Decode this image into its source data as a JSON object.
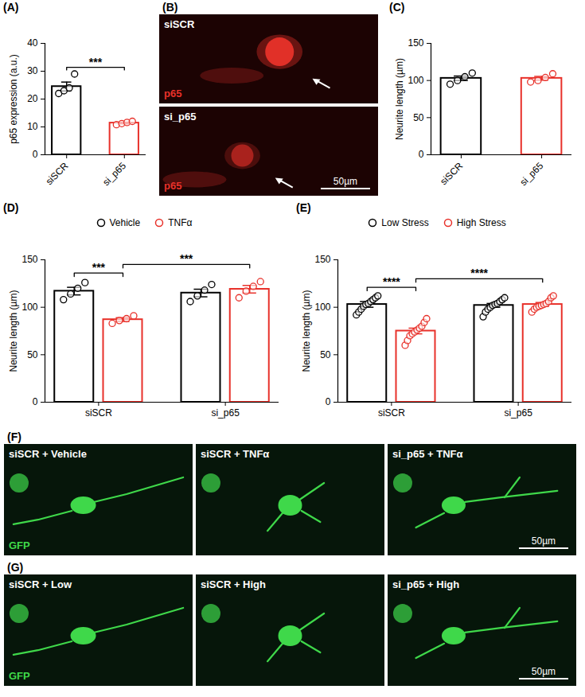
{
  "chart_data": [
    {
      "panel": "(A)",
      "type": "bar",
      "categories": [
        "siSCR",
        "si_p65"
      ],
      "values": [
        24.5,
        11.4
      ],
      "errors": [
        1.6,
        0.3
      ],
      "points": [
        [
          22,
          23,
          24,
          29
        ],
        [
          10.8,
          11.2,
          11.6,
          12
        ]
      ],
      "colors": [
        "#000000",
        "#e8312a"
      ],
      "y_label": "p65 expression (a.u.)",
      "ylim": [
        0,
        40
      ],
      "yticks": [
        0,
        10,
        20,
        30,
        40
      ],
      "significance": [
        {
          "from": {
            "category": 0
          },
          "to": {
            "category": 1
          },
          "label": "***"
        }
      ]
    },
    {
      "panel": "(C)",
      "type": "bar",
      "categories": [
        "siSCR",
        "si_p65"
      ],
      "values": [
        103,
        103
      ],
      "errors": [
        3,
        2.5
      ],
      "points": [
        [
          95,
          100,
          105,
          110
        ],
        [
          98,
          100,
          104,
          109
        ]
      ],
      "colors": [
        "#000000",
        "#e8312a"
      ],
      "y_label": "Neurite length (µm)",
      "ylim": [
        0,
        150
      ],
      "yticks": [
        0,
        50,
        100,
        150
      ]
    },
    {
      "panel": "(D)",
      "type": "bar",
      "categories": [
        "siSCR",
        "si_p65"
      ],
      "series": [
        {
          "name": "Vehicle",
          "color": "#000000",
          "values": [
            117,
            115
          ],
          "errors": [
            4,
            4
          ],
          "points": [
            [
              108,
              114,
              120,
              126
            ],
            [
              106,
              112,
              118,
              124
            ]
          ]
        },
        {
          "name": "TNFα",
          "color": "#e8312a",
          "values": [
            87,
            119
          ],
          "errors": [
            2,
            4
          ],
          "points": [
            [
              83,
              86,
              88,
              91
            ],
            [
              110,
              117,
              122,
              127
            ]
          ]
        }
      ],
      "legend": "top",
      "y_label": "Neurite length (µm)",
      "ylim": [
        0,
        150
      ],
      "yticks": [
        0,
        50,
        100,
        150
      ],
      "significance": [
        {
          "from": {
            "category": 0,
            "series": 0
          },
          "to": {
            "category": 0,
            "series": 1
          },
          "label": "***"
        },
        {
          "from": {
            "category": 0,
            "series": 1
          },
          "to": {
            "category": 1,
            "series": 1
          },
          "label": "***"
        }
      ]
    },
    {
      "panel": "(E)",
      "type": "bar",
      "categories": [
        "siSCR",
        "si_p65"
      ],
      "series": [
        {
          "name": "Low Stress",
          "color": "#000000",
          "values": [
            103,
            102
          ],
          "errors": [
            3,
            2
          ],
          "points": [
            [
              92,
              95,
              98,
              101,
              103,
              104,
              106,
              108,
              110,
              112
            ],
            [
              90,
              95,
              98,
              100,
              102,
              103,
              104,
              106,
              108,
              110
            ]
          ]
        },
        {
          "name": "High Stress",
          "color": "#e8312a",
          "values": [
            75,
            103
          ],
          "errors": [
            3,
            2
          ],
          "points": [
            [
              60,
              65,
              70,
              72,
              74,
              76,
              78,
              80,
              84,
              88
            ],
            [
              95,
              98,
              100,
              101,
              102,
              103,
              104,
              106,
              110,
              112
            ]
          ]
        }
      ],
      "legend": "top",
      "y_label": "Neurite length (µm)",
      "ylim": [
        0,
        150
      ],
      "yticks": [
        0,
        50,
        100,
        150
      ],
      "significance": [
        {
          "from": {
            "category": 0,
            "series": 0
          },
          "to": {
            "category": 0,
            "series": 1
          },
          "label": "****"
        },
        {
          "from": {
            "category": 0,
            "series": 1
          },
          "to": {
            "category": 1,
            "series": 1
          },
          "label": "****"
        }
      ]
    }
  ],
  "images": [
    {
      "panel": "(B)",
      "color": "#e8312a",
      "tiles": [
        {
          "label": "siSCR",
          "channel": "p65"
        },
        {
          "label": "si_p65",
          "channel": "p65",
          "scale_bar": "50µm"
        }
      ]
    },
    {
      "panel": "(F)",
      "color": "#3fd84a",
      "tiles": [
        {
          "label": "siSCR + Vehicle",
          "channel": "GFP"
        },
        {
          "label": "siSCR + TNFα"
        },
        {
          "label": "si_p65 + TNFα",
          "scale_bar": "50µm"
        }
      ]
    },
    {
      "panel": "(G)",
      "color": "#3fd84a",
      "tiles": [
        {
          "label": "siSCR + Low",
          "channel": "GFP"
        },
        {
          "label": "siSCR + High"
        },
        {
          "label": "si_p65 + High",
          "scale_bar": "50µm"
        }
      ]
    }
  ]
}
